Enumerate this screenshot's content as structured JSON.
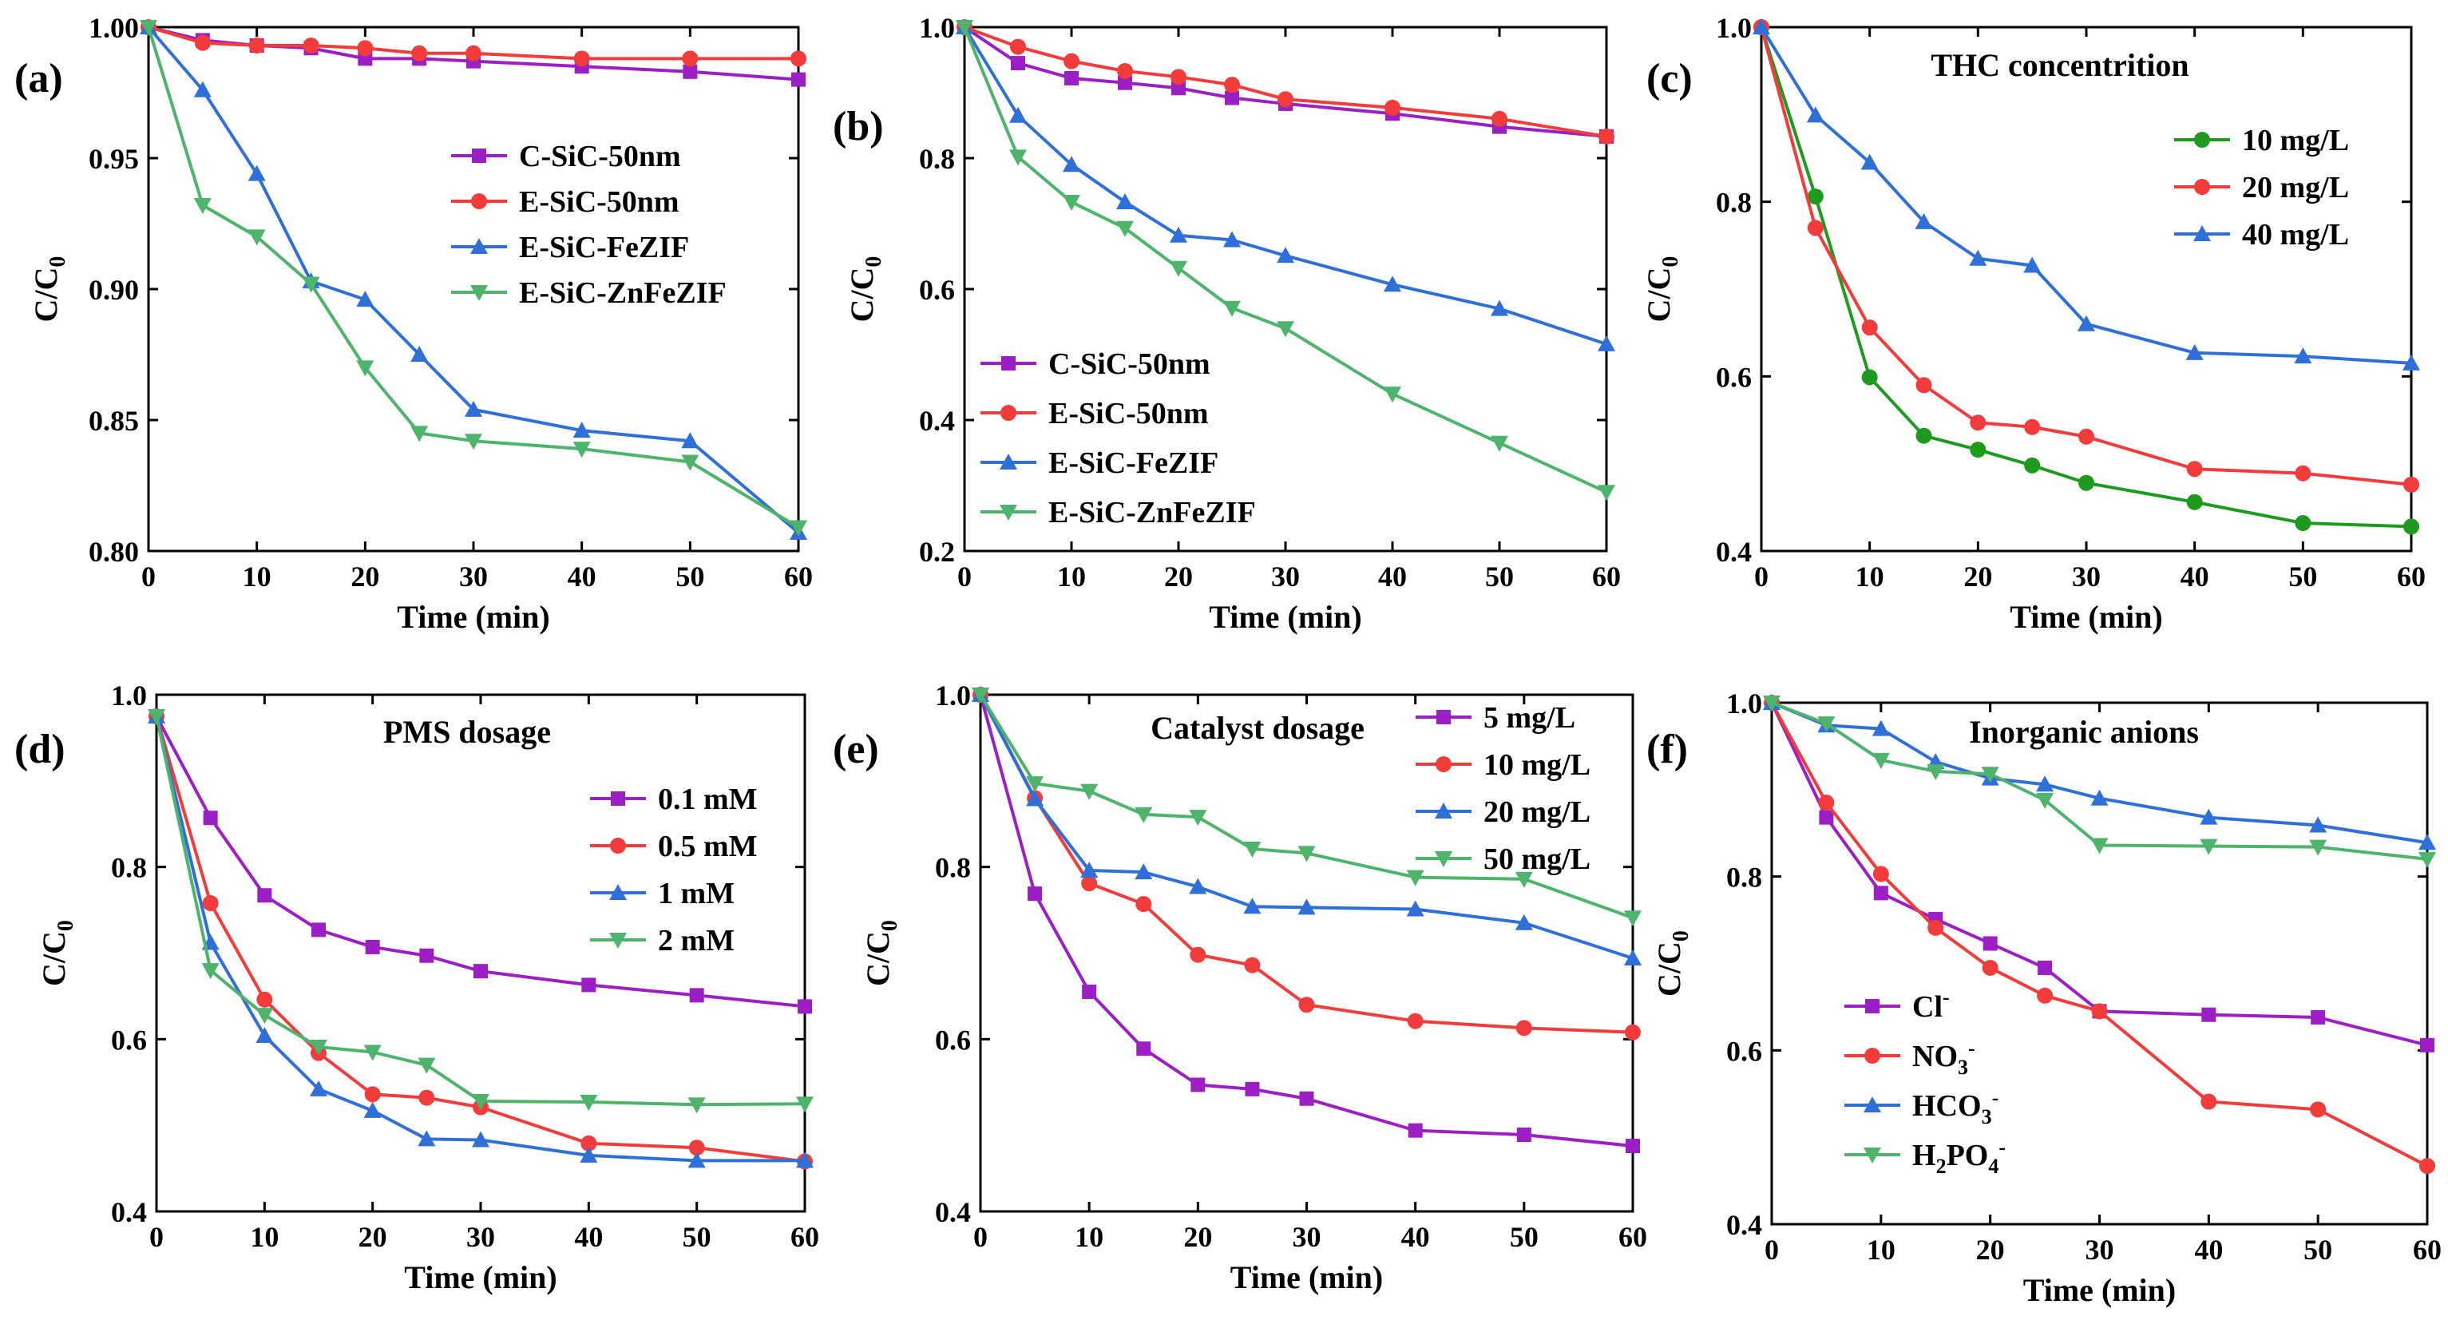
{
  "colors": {
    "purple": "#9b1fc4",
    "red": "#f23c3c",
    "blue": "#2f6fd8",
    "green": "#4eb36b",
    "darkgreen": "#1e9a1e"
  },
  "chart_data": [
    {
      "type": "line",
      "panel_label": "(a)",
      "title": "",
      "xlabel": "Time (min)",
      "ylabel_main": "C/C",
      "ylabel_sub": "0",
      "xlim": [
        0,
        60
      ],
      "ylim": [
        0.8,
        1.0
      ],
      "xticks": [
        0,
        10,
        20,
        30,
        40,
        50,
        60
      ],
      "yticks": [
        0.8,
        0.85,
        0.9,
        0.95,
        1.0
      ],
      "ytick_labels": [
        "0.80",
        "0.85",
        "0.90",
        "0.95",
        "1.00"
      ],
      "legend_position": "middle-right",
      "x": [
        0,
        5,
        10,
        15,
        20,
        25,
        30,
        40,
        50,
        60
      ],
      "series": [
        {
          "name": "C-SiC-50nm",
          "color_key": "purple",
          "marker": "square",
          "values": [
            1.0,
            0.995,
            0.993,
            0.992,
            0.988,
            0.988,
            0.987,
            0.985,
            0.983,
            0.98
          ]
        },
        {
          "name": "E-SiC-50nm",
          "color_key": "red",
          "marker": "circle",
          "values": [
            1.0,
            0.994,
            0.993,
            0.993,
            0.992,
            0.99,
            0.99,
            0.988,
            0.988,
            0.988
          ]
        },
        {
          "name": "E-SiC-FeZIF",
          "color_key": "blue",
          "marker": "triangle-up",
          "values": [
            1.0,
            0.976,
            0.944,
            0.903,
            0.896,
            0.875,
            0.854,
            0.846,
            0.842,
            0.807
          ]
        },
        {
          "name": "E-SiC-ZnFeZIF",
          "color_key": "green",
          "marker": "triangle-down",
          "values": [
            1.0,
            0.932,
            0.92,
            0.902,
            0.87,
            0.845,
            0.842,
            0.839,
            0.834,
            0.809
          ]
        }
      ]
    },
    {
      "type": "line",
      "panel_label": "(b)",
      "title": "",
      "xlabel": "Time (min)",
      "ylabel_main": "C/C",
      "ylabel_sub": "0",
      "xlim": [
        0,
        60
      ],
      "ylim": [
        0.2,
        1.0
      ],
      "xticks": [
        0,
        10,
        20,
        30,
        40,
        50,
        60
      ],
      "yticks": [
        0.2,
        0.4,
        0.6,
        0.8,
        1.0
      ],
      "ytick_labels": [
        "0.2",
        "0.4",
        "0.6",
        "0.8",
        "1.0"
      ],
      "legend_position": "lower-left",
      "x": [
        0,
        5,
        10,
        15,
        20,
        25,
        30,
        40,
        50,
        60
      ],
      "series": [
        {
          "name": "C-SiC-50nm",
          "color_key": "purple",
          "marker": "square",
          "values": [
            1.0,
            0.945,
            0.922,
            0.915,
            0.907,
            0.892,
            0.883,
            0.868,
            0.848,
            0.833
          ]
        },
        {
          "name": "E-SiC-50nm",
          "color_key": "red",
          "marker": "circle",
          "values": [
            1.0,
            0.97,
            0.948,
            0.933,
            0.924,
            0.912,
            0.89,
            0.877,
            0.86,
            0.833
          ]
        },
        {
          "name": "E-SiC-FeZIF",
          "color_key": "blue",
          "marker": "triangle-up",
          "values": [
            1.0,
            0.865,
            0.79,
            0.733,
            0.682,
            0.675,
            0.651,
            0.607,
            0.57,
            0.516
          ]
        },
        {
          "name": "E-SiC-ZnFeZIF",
          "color_key": "green",
          "marker": "triangle-down",
          "values": [
            1.0,
            0.802,
            0.733,
            0.693,
            0.632,
            0.571,
            0.54,
            0.44,
            0.365,
            0.29
          ]
        }
      ]
    },
    {
      "type": "line",
      "panel_label": "(c)",
      "title": "THC concentrition",
      "xlabel": "Time (min)",
      "ylabel_main": "C/C",
      "ylabel_sub": "0",
      "xlim": [
        0,
        60
      ],
      "ylim": [
        0.4,
        1.0
      ],
      "xticks": [
        0,
        10,
        20,
        30,
        40,
        50,
        60
      ],
      "yticks": [
        0.4,
        0.6,
        0.8,
        1.0
      ],
      "ytick_labels": [
        "0.4",
        "0.6",
        "0.8",
        "1.0"
      ],
      "legend_position": "upper-right",
      "x": [
        0,
        5,
        10,
        15,
        20,
        25,
        30,
        40,
        50,
        60
      ],
      "series": [
        {
          "name": "10 mg/L",
          "color_key": "darkgreen",
          "marker": "circle",
          "values": [
            1.0,
            0.806,
            0.599,
            0.532,
            0.516,
            0.498,
            0.478,
            0.456,
            0.432,
            0.428
          ]
        },
        {
          "name": "20 mg/L",
          "color_key": "red",
          "marker": "circle",
          "values": [
            1.0,
            0.77,
            0.656,
            0.59,
            0.547,
            0.542,
            0.531,
            0.494,
            0.489,
            0.476
          ]
        },
        {
          "name": "40 mg/L",
          "color_key": "blue",
          "marker": "triangle-up",
          "values": [
            1.0,
            0.899,
            0.845,
            0.777,
            0.735,
            0.727,
            0.66,
            0.627,
            0.623,
            0.615
          ]
        }
      ]
    },
    {
      "type": "line",
      "panel_label": "(d)",
      "title": "PMS dosage",
      "xlabel": "Time (min)",
      "ylabel_main": "C/C",
      "ylabel_sub": "0",
      "xlim": [
        0,
        60
      ],
      "ylim": [
        0.4,
        1.0
      ],
      "xticks": [
        0,
        10,
        20,
        30,
        40,
        50,
        60
      ],
      "yticks": [
        0.4,
        0.6,
        0.8,
        1.0
      ],
      "ytick_labels": [
        "0.4",
        "0.6",
        "0.8",
        "1.0"
      ],
      "legend_position": "upper-right",
      "x": [
        0,
        5,
        10,
        15,
        20,
        25,
        30,
        40,
        50,
        60
      ],
      "series": [
        {
          "name": "0.1 mM",
          "color_key": "purple",
          "marker": "square",
          "values": [
            0.975,
            0.857,
            0.767,
            0.727,
            0.707,
            0.697,
            0.679,
            0.663,
            0.651,
            0.638
          ]
        },
        {
          "name": "0.5 mM",
          "color_key": "red",
          "marker": "circle",
          "values": [
            0.975,
            0.758,
            0.646,
            0.584,
            0.536,
            0.532,
            0.521,
            0.479,
            0.474,
            0.458
          ]
        },
        {
          "name": "1 mM",
          "color_key": "blue",
          "marker": "triangle-up",
          "values": [
            0.975,
            0.712,
            0.604,
            0.542,
            0.517,
            0.484,
            0.483,
            0.465,
            0.459,
            0.459
          ]
        },
        {
          "name": "2 mM",
          "color_key": "green",
          "marker": "triangle-down",
          "values": [
            0.975,
            0.68,
            0.628,
            0.591,
            0.585,
            0.57,
            0.528,
            0.527,
            0.524,
            0.525
          ]
        }
      ]
    },
    {
      "type": "line",
      "panel_label": "(e)",
      "title": "Catalyst dosage",
      "xlabel": "Time (min)",
      "ylabel_main": "C/C",
      "ylabel_sub": "0",
      "xlim": [
        0,
        60
      ],
      "ylim": [
        0.4,
        1.0
      ],
      "xticks": [
        0,
        10,
        20,
        30,
        40,
        50,
        60
      ],
      "yticks": [
        0.4,
        0.6,
        0.8,
        1.0
      ],
      "ytick_labels": [
        "0.4",
        "0.6",
        "0.8",
        "1.0"
      ],
      "legend_position": "upper-right",
      "x": [
        0,
        5,
        10,
        15,
        20,
        25,
        30,
        40,
        50,
        60
      ],
      "series": [
        {
          "name": "5 mg/L",
          "color_key": "purple",
          "marker": "square",
          "values": [
            1.0,
            0.769,
            0.655,
            0.589,
            0.547,
            0.542,
            0.531,
            0.494,
            0.489,
            0.476
          ]
        },
        {
          "name": "10 mg/L",
          "color_key": "red",
          "marker": "circle",
          "values": [
            1.0,
            0.88,
            0.781,
            0.757,
            0.698,
            0.686,
            0.64,
            0.621,
            0.613,
            0.608
          ]
        },
        {
          "name": "20 mg/L",
          "color_key": "blue",
          "marker": "triangle-up",
          "values": [
            1.0,
            0.879,
            0.796,
            0.794,
            0.777,
            0.754,
            0.753,
            0.751,
            0.735,
            0.694
          ]
        },
        {
          "name": "50 mg/L",
          "color_key": "green",
          "marker": "triangle-down",
          "values": [
            1.0,
            0.897,
            0.888,
            0.861,
            0.858,
            0.821,
            0.816,
            0.788,
            0.786,
            0.741
          ]
        }
      ]
    },
    {
      "type": "line",
      "panel_label": "(f)",
      "title": "Inorganic anions",
      "xlabel": "Time (min)",
      "ylabel_main": "C/C",
      "ylabel_sub": "0",
      "xlim": [
        0,
        60
      ],
      "ylim": [
        0.4,
        1.0
      ],
      "xticks": [
        0,
        10,
        20,
        30,
        40,
        50,
        60
      ],
      "yticks": [
        0.4,
        0.6,
        0.8,
        1.0
      ],
      "ytick_labels": [
        "0.4",
        "0.6",
        "0.8",
        "1.0"
      ],
      "legend_position": "lower-left",
      "x": [
        0,
        5,
        10,
        15,
        20,
        25,
        30,
        40,
        50,
        60
      ],
      "series": [
        {
          "name": "Cl",
          "name_sup": "-",
          "name_tail": "",
          "color_key": "purple",
          "marker": "square",
          "values": [
            1.0,
            0.868,
            0.781,
            0.751,
            0.723,
            0.695,
            0.645,
            0.641,
            0.638,
            0.606
          ]
        },
        {
          "name": "NO",
          "name_sub": "3",
          "name_sup": "-",
          "color_key": "red",
          "marker": "circle",
          "values": [
            1.0,
            0.885,
            0.803,
            0.741,
            0.695,
            0.663,
            0.645,
            0.541,
            0.532,
            0.467
          ]
        },
        {
          "name": "HCO",
          "name_sub": "3",
          "name_sup": "-",
          "color_key": "blue",
          "marker": "triangle-up",
          "values": [
            1.0,
            0.974,
            0.97,
            0.932,
            0.913,
            0.906,
            0.89,
            0.868,
            0.859,
            0.839
          ]
        },
        {
          "name": "H",
          "name_sub": "2",
          "name_mid": "PO",
          "name_sub2": "4",
          "name_sup": "-",
          "color_key": "green",
          "marker": "triangle-down",
          "values": [
            1.0,
            0.976,
            0.934,
            0.921,
            0.918,
            0.888,
            0.836,
            0.835,
            0.834,
            0.82
          ]
        }
      ]
    }
  ]
}
